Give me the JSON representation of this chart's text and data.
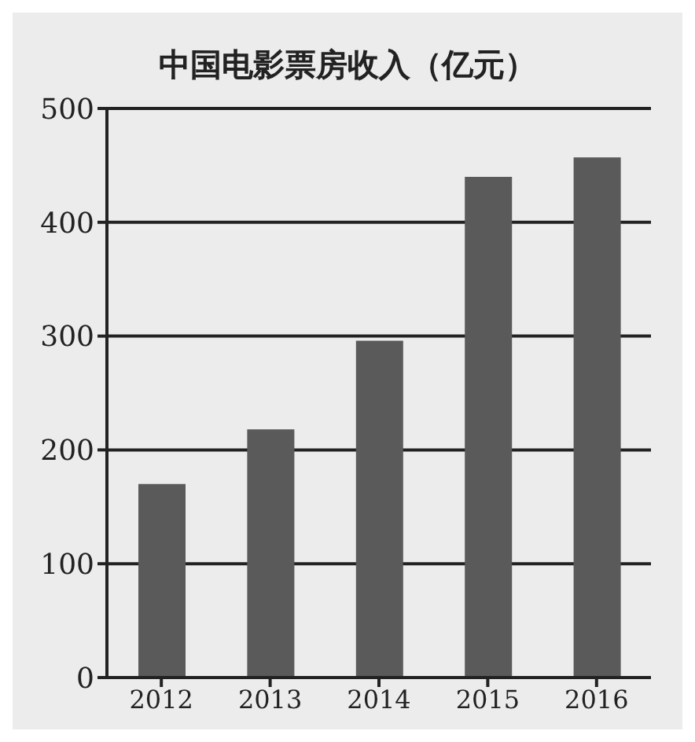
{
  "chart_data": {
    "type": "bar",
    "title": "中国电影票房收入（亿元）",
    "categories": [
      "2012",
      "2013",
      "2014",
      "2015",
      "2016"
    ],
    "values": [
      170,
      218,
      296,
      440,
      457
    ],
    "color": "#5a5a5a",
    "ylim": [
      0,
      500
    ],
    "yticks": [
      0,
      100,
      200,
      300,
      400,
      500
    ],
    "grid": "y"
  }
}
